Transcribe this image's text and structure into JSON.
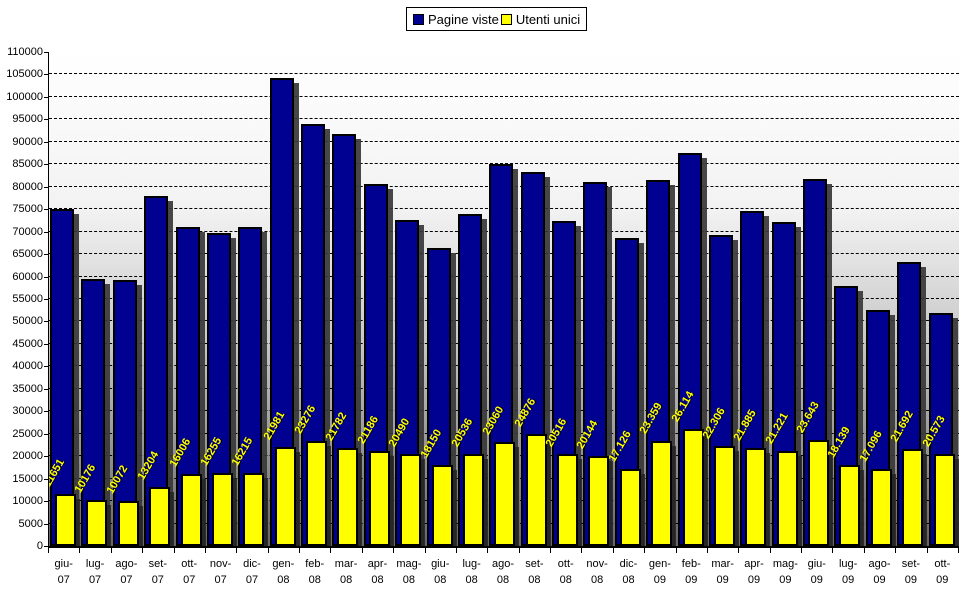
{
  "chart_data": {
    "type": "bar",
    "title": "",
    "xlabel": "",
    "ylabel": "",
    "ylim": [
      0,
      110000
    ],
    "ytick_step": 5000,
    "grid": "horizontal-dashed",
    "legend_position": "top-center",
    "background": "gradient-white-to-gray",
    "categories": [
      "giu-07",
      "lug-07",
      "ago-07",
      "set-07",
      "ott-07",
      "nov-07",
      "dic-07",
      "gen-08",
      "feb-08",
      "mar-08",
      "apr-08",
      "mag-08",
      "giu-08",
      "lug-08",
      "ago-08",
      "set-08",
      "ott-08",
      "nov-08",
      "dic-08",
      "gen-09",
      "feb-09",
      "mar-09",
      "apr-09",
      "mag-09",
      "giu-09",
      "lug-09",
      "ago-09",
      "set-09",
      "ott-09"
    ],
    "series": [
      {
        "name": "Pagine viste",
        "color": "#000091",
        "values": [
          75000,
          59500,
          59200,
          78000,
          71000,
          69700,
          71000,
          104300,
          94000,
          91700,
          80700,
          72500,
          66300,
          74000,
          85000,
          83200,
          72300,
          81000,
          68500,
          81500,
          87500,
          69300,
          74500,
          72100,
          81700,
          58000,
          52500,
          63300,
          51800
        ]
      },
      {
        "name": "Utenti unici",
        "color": "#ffff00",
        "values": [
          11651,
          10176,
          10072,
          13204,
          16006,
          16255,
          16215,
          21981,
          23276,
          21782,
          21186,
          20490,
          18150,
          20536,
          23060,
          24876,
          20516,
          20144,
          17126,
          23359,
          26114,
          22306,
          21885,
          21221,
          23643,
          18139,
          17096,
          21692,
          20573
        ],
        "labels": [
          "11651",
          "10176",
          "10072",
          "13204",
          "16006",
          "16255",
          "16215",
          "21981",
          "23276",
          "21782",
          "21186",
          "20490",
          "18150",
          "20536",
          "23060",
          "24876",
          "20516",
          "20144",
          "17.126",
          "23.359",
          "26.114",
          "22.306",
          "21.885",
          "21.221",
          "23.643",
          "18.139",
          "17.096",
          "21.692",
          "20.573"
        ]
      }
    ]
  }
}
